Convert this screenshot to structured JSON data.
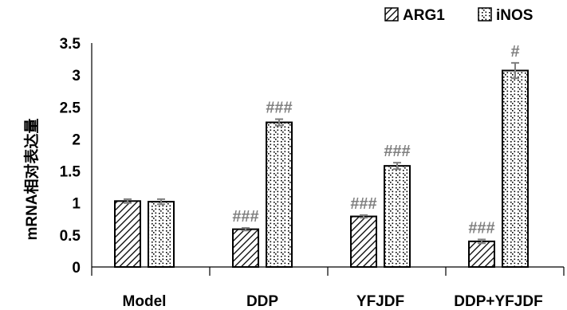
{
  "chart_data": {
    "type": "bar",
    "ylabel": "mRNA相对表达量",
    "ylim": [
      0,
      3.5
    ],
    "yticks": [
      "0",
      "0.5",
      "1",
      "1.5",
      "2",
      "2.5",
      "3",
      "3.5"
    ],
    "grid": false,
    "legend_position": "top-right",
    "categories": [
      "Model",
      "DDP",
      "YFJDF",
      "DDP+YFJDF"
    ],
    "series": [
      {
        "name": "ARG1",
        "values": [
          1.03,
          0.59,
          0.79,
          0.4
        ],
        "errors": [
          0.03,
          0.02,
          0.02,
          0.03
        ],
        "annotations": [
          "",
          "###",
          "###",
          "###"
        ]
      },
      {
        "name": "iNOS",
        "values": [
          1.02,
          2.26,
          1.58,
          3.07
        ],
        "errors": [
          0.04,
          0.05,
          0.05,
          0.12
        ],
        "annotations": [
          "",
          "###",
          "###",
          "#"
        ]
      }
    ],
    "colors": {
      "axis": "#000000",
      "bar_fill": "#ffffff",
      "hatch": "#000000",
      "annotation": "#7f7f7f",
      "errorbar": "#7f7f7f"
    }
  }
}
